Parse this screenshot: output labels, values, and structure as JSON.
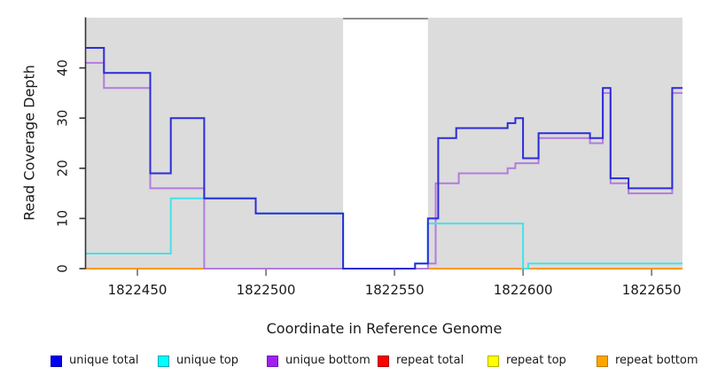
{
  "chart_data": {
    "type": "line",
    "subtype": "step-coverage",
    "title": "",
    "xlabel": "Coordinate in Reference Genome",
    "ylabel": "Read Coverage Depth",
    "xlim": [
      1822430,
      1822662
    ],
    "ylim": [
      0,
      50
    ],
    "xticks": [
      1822450,
      1822500,
      1822550,
      1822600,
      1822650
    ],
    "yticks": [
      0,
      10,
      20,
      30,
      40
    ],
    "grid": false,
    "plot_bg": "#dcdcdc",
    "axis_color": "#333333",
    "tick_label_color": "#1a1a1a",
    "masked_region": {
      "x0": 1822530,
      "x1": 1822563,
      "color": "#ffffff",
      "top_border_color": "#8f8f8f",
      "insert_before_series": 3
    },
    "series": [
      {
        "name": "repeat total",
        "color": "#dd0000",
        "points": [
          [
            1822430,
            0
          ],
          [
            1822662,
            0
          ]
        ]
      },
      {
        "name": "repeat top",
        "color": "#eeee00",
        "points": [
          [
            1822430,
            0
          ],
          [
            1822662,
            0
          ]
        ]
      },
      {
        "name": "repeat bottom",
        "color": "#ff9818",
        "points": [
          [
            1822430,
            0
          ],
          [
            1822662,
            0
          ]
        ]
      },
      {
        "name": "unique bottom",
        "color": "#b27bde",
        "points": [
          [
            1822430,
            41
          ],
          [
            1822437,
            36
          ],
          [
            1822455,
            16
          ],
          [
            1822476,
            0
          ],
          [
            1822563,
            1
          ],
          [
            1822566,
            17
          ],
          [
            1822575,
            19
          ],
          [
            1822594,
            20
          ],
          [
            1822597,
            21
          ],
          [
            1822606,
            26
          ],
          [
            1822626,
            25
          ],
          [
            1822631,
            35
          ],
          [
            1822634,
            17
          ],
          [
            1822641,
            15
          ],
          [
            1822658,
            35
          ],
          [
            1822662,
            35
          ]
        ]
      },
      {
        "name": "unique top",
        "color": "#45e1e8",
        "points": [
          [
            1822430,
            3
          ],
          [
            1822463,
            14
          ],
          [
            1822496,
            11
          ],
          [
            1822530,
            0
          ],
          [
            1822558,
            1
          ],
          [
            1822563,
            9
          ],
          [
            1822600,
            0
          ],
          [
            1822602,
            1
          ],
          [
            1822662,
            1
          ]
        ]
      },
      {
        "name": "unique total",
        "color": "#2c2cd8",
        "points": [
          [
            1822430,
            44
          ],
          [
            1822437,
            39
          ],
          [
            1822455,
            19
          ],
          [
            1822463,
            30
          ],
          [
            1822476,
            14
          ],
          [
            1822496,
            11
          ],
          [
            1822530,
            0
          ],
          [
            1822558,
            1
          ],
          [
            1822563,
            10
          ],
          [
            1822567,
            26
          ],
          [
            1822574,
            28
          ],
          [
            1822594,
            29
          ],
          [
            1822597,
            30
          ],
          [
            1822600,
            22
          ],
          [
            1822606,
            27
          ],
          [
            1822626,
            26
          ],
          [
            1822631,
            36
          ],
          [
            1822634,
            18
          ],
          [
            1822641,
            16
          ],
          [
            1822658,
            36
          ],
          [
            1822662,
            36
          ]
        ]
      }
    ],
    "legend_position": "bottom"
  },
  "legend": {
    "items": [
      {
        "label": "unique total",
        "color": "#0000ee",
        "border": "#0000a8"
      },
      {
        "label": "unique top",
        "color": "#00ffff",
        "border": "#00aab4"
      },
      {
        "label": "unique bottom",
        "color": "#a020f0",
        "border": "#7714b8"
      },
      {
        "label": "repeat total",
        "color": "#ff0000",
        "border": "#aa0000"
      },
      {
        "label": "repeat top",
        "color": "#ffff00",
        "border": "#b4b400"
      },
      {
        "label": "repeat bottom",
        "color": "#ffa500",
        "border": "#c07800"
      }
    ]
  }
}
